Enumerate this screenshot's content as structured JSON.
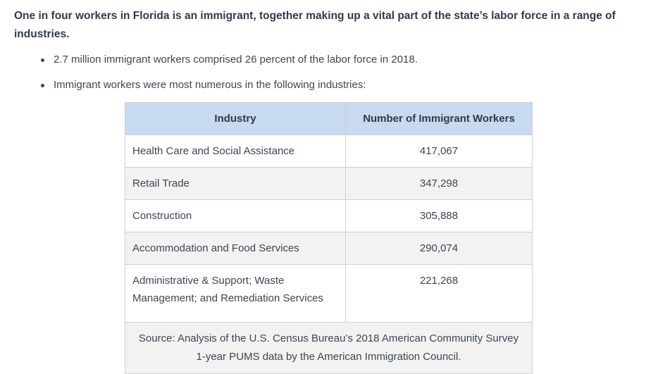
{
  "intro": "One in four workers in Florida is an immigrant, together making up a vital part of the state’s labor force in a range of industries.",
  "bullets": [
    "2.7 million immigrant workers comprised 26 percent of the labor force in 2018.",
    "Immigrant workers were most numerous in the following industries:"
  ],
  "table": {
    "headers": [
      "Industry",
      "Number of Immigrant Workers"
    ],
    "rows": [
      {
        "industry": "Health Care and Social Assistance",
        "workers": "417,067"
      },
      {
        "industry": "Retail Trade",
        "workers": "347,298"
      },
      {
        "industry": "Construction",
        "workers": "305,888"
      },
      {
        "industry": "Accommodation and Food Services",
        "workers": "290,074"
      },
      {
        "industry": "Administrative & Support; Waste Management; and Remediation Services",
        "workers": "221,268"
      }
    ],
    "source": "Source: Analysis of the U.S. Census Bureau’s 2018 American Community Survey 1-year PUMS data by the American Immigration Council.",
    "colors": {
      "header_bg": "#c8daef",
      "stripe_bg": "#f2f2f2",
      "border": "#cfcfcf"
    }
  }
}
